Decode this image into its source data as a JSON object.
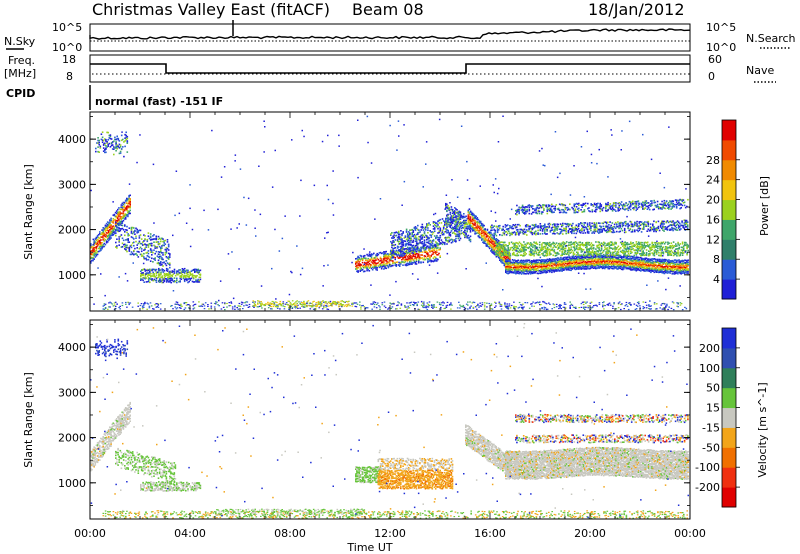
{
  "header": {
    "station": "Christmas Valley East (fitACF)",
    "beam": "Beam 08",
    "date": "18/Jan/2012"
  },
  "sky_panel": {
    "left_label": "N.Sky",
    "left_ticks": [
      "10^5",
      "10^0"
    ],
    "right_ticks": [
      "10^5",
      "10^0"
    ],
    "right_label": "N.Search"
  },
  "freq_panel": {
    "left_label_1": "Freq.",
    "left_label_2": "[MHz]",
    "left_ticks": [
      "18",
      "8"
    ],
    "right_ticks": [
      "60",
      "0"
    ],
    "right_label": "Nave"
  },
  "cpid": {
    "label": "CPID",
    "value": "normal (fast) -151 IF"
  },
  "colors": {
    "power_scale": [
      "#1f1fd6",
      "#2a5bd6",
      "#2f7f6a",
      "#3fa66a",
      "#9bd11e",
      "#f1c40f",
      "#f08a00",
      "#f04a00",
      "#e00000"
    ],
    "velocity_scale": [
      "#1f2fd6",
      "#2f4fb0",
      "#2f7f5a",
      "#66c43a",
      "#c8c8c0",
      "#f2a51a",
      "#f07000",
      "#f03010",
      "#e00000"
    ]
  },
  "chart_data": [
    {
      "type": "heatmap",
      "name": "Power",
      "ylabel": "Slant Range [km]",
      "yticks": [
        "1000",
        "2000",
        "3000",
        "4000"
      ],
      "ylim": [
        200,
        4600
      ],
      "xlim": [
        "00:00",
        "24:00"
      ],
      "colorbar_label": "Power [dB]",
      "colorbar_ticks": [
        "4",
        "8",
        "12",
        "16",
        "20",
        "24",
        "28"
      ]
    },
    {
      "type": "heatmap",
      "name": "Velocity",
      "ylabel": "Slant Range [km]",
      "yticks": [
        "1000",
        "2000",
        "3000",
        "4000"
      ],
      "ylim": [
        200,
        4600
      ],
      "xlim": [
        "00:00",
        "24:00"
      ],
      "colorbar_label": "Velocity [m s^-1]",
      "colorbar_ticks": [
        "200",
        "100",
        "50",
        "15",
        "-15",
        "-50",
        "-100",
        "-200"
      ]
    }
  ],
  "xaxis": {
    "ticks": [
      "00:00",
      "04:00",
      "08:00",
      "12:00",
      "16:00",
      "20:00",
      "00:00"
    ],
    "label": "Time UT"
  }
}
